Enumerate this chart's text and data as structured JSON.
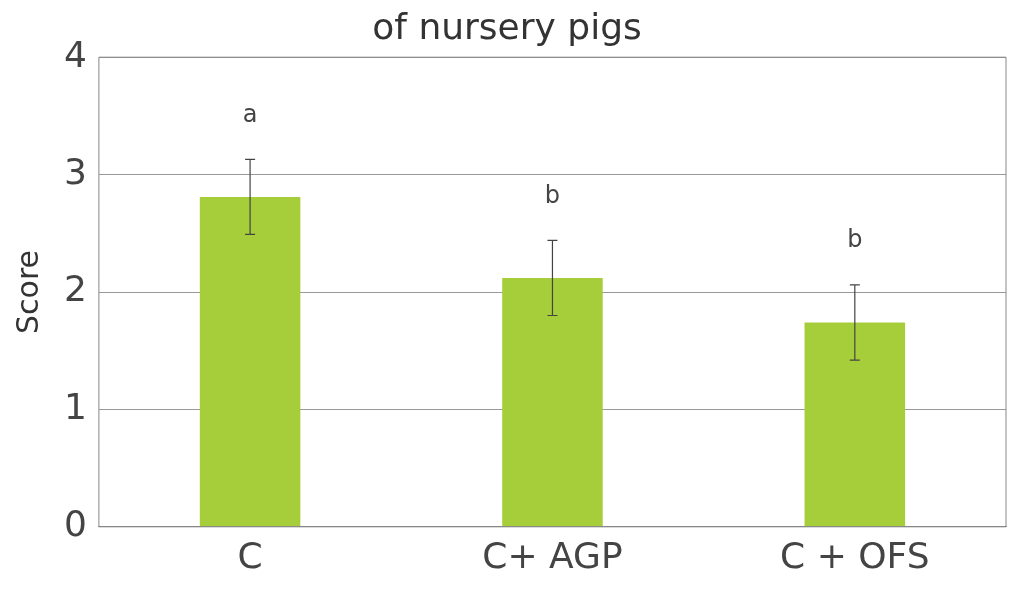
{
  "chart_data": {
    "type": "bar",
    "title": "of nursery pigs",
    "ylabel": "Score",
    "categories": [
      "C",
      "C+ AGP",
      "C + OFS"
    ],
    "values": [
      2.81,
      2.12,
      1.74
    ],
    "errors": [
      0.32,
      0.32,
      0.32
    ],
    "color": "#a6cd3a",
    "ylim": [
      0,
      4
    ],
    "yticks": [
      0,
      1,
      2,
      3,
      4
    ],
    "grid": "y",
    "legend": false,
    "annotations": [
      "a",
      "b",
      "b"
    ]
  }
}
